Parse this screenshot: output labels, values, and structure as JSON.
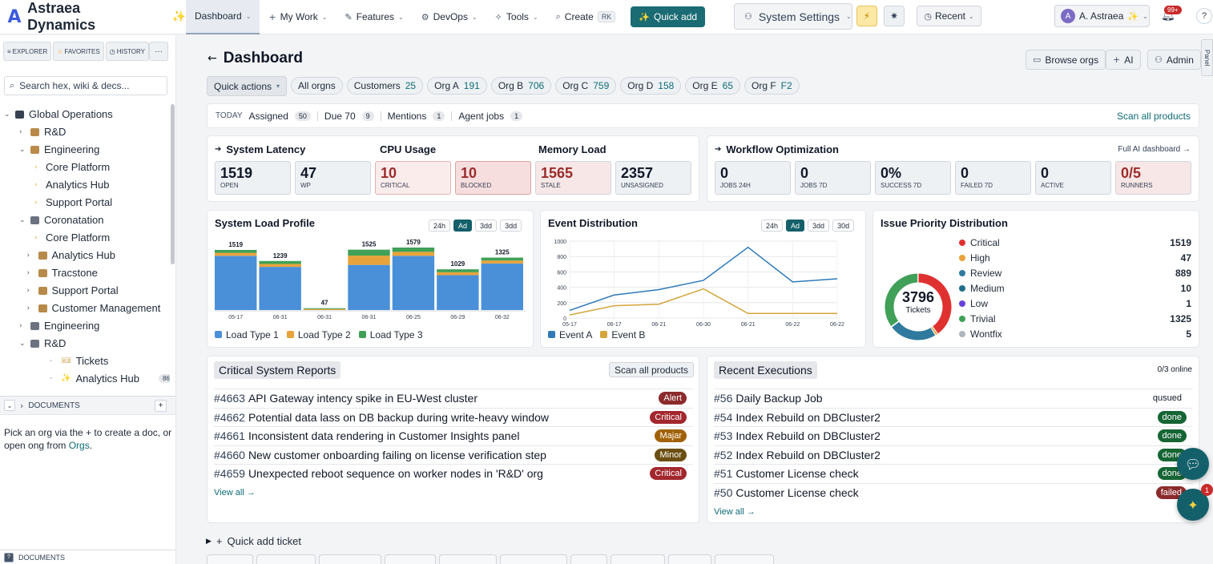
{
  "app": {
    "name": "Astraea Dynamics",
    "logo_glyph": "A"
  },
  "nav": {
    "items": [
      {
        "label": "Dashboard",
        "icon": ""
      },
      {
        "label": "My Work",
        "icon": "+"
      },
      {
        "label": "Features",
        "icon": "✎"
      },
      {
        "label": "DevOps",
        "icon": "⚙"
      },
      {
        "label": "Tools",
        "icon": "✧"
      }
    ],
    "create_label": "Create",
    "create_kbd": "RK",
    "quick_add_label": "Quick add",
    "system_settings": "System Settings",
    "recent": "Recent",
    "user_initial": "A",
    "user_name": "A. Astraea",
    "notif_badge": "99+",
    "help": "?"
  },
  "sidebar": {
    "tabs": [
      "EXPLORER",
      "FAVORITES",
      "HISTORY"
    ],
    "more": "···",
    "search_placeholder": "Search hex, wiki & decs...",
    "tree": [
      {
        "label": "Global Operations",
        "indent": 0,
        "tw": "⌄",
        "icon": "net"
      },
      {
        "label": "R&D",
        "indent": 1,
        "tw": "›",
        "icon": "box"
      },
      {
        "label": "Engineering",
        "indent": 1,
        "tw": "⌄",
        "icon": "box"
      },
      {
        "label": "Core Platform",
        "indent": 2,
        "tw": "›",
        "icon": ""
      },
      {
        "label": "Analytics Hub",
        "indent": 2,
        "tw": "›",
        "icon": ""
      },
      {
        "label": "Support Portal",
        "indent": 2,
        "tw": "›",
        "icon": ""
      },
      {
        "label": "Coronatation",
        "indent": 1,
        "tw": "⌄",
        "icon": "folder"
      },
      {
        "label": "Core Platform",
        "indent": 2,
        "tw": "›",
        "icon": ""
      },
      {
        "label": "Analytics Hub",
        "indent": 1.5,
        "tw": "›",
        "icon": "box"
      },
      {
        "label": "Tracstone",
        "indent": 1.5,
        "tw": "›",
        "icon": "box"
      },
      {
        "label": "Support Portal",
        "indent": 1.5,
        "tw": "›",
        "icon": "box"
      },
      {
        "label": "Customer Management",
        "indent": 1.5,
        "tw": "›",
        "icon": "box"
      },
      {
        "label": "Engineering",
        "indent": 1,
        "tw": "›",
        "icon": "folder"
      },
      {
        "label": "R&D",
        "indent": 1,
        "tw": "⌄",
        "icon": "folder"
      },
      {
        "label": "Tickets",
        "indent": 3,
        "tw": "·",
        "icon": "ticket"
      },
      {
        "label": "Analytics Hub",
        "indent": 3,
        "tw": "·",
        "icon": "spark",
        "count": "86"
      }
    ],
    "documents_label": "DOCUMENTS",
    "documents_add": "+",
    "docs_text_before": "Pick an org via the + to create a doc, or open ong from ",
    "docs_link": "Orgs",
    "docs_text_after": ".",
    "documents_label2": "DOCUMENTS"
  },
  "page": {
    "title": "Dashboard",
    "browse_orgs": "Browse orgs",
    "ai": "AI",
    "admin": "Admin",
    "panel_tab": "Panel",
    "quick_actions": "Quick actions",
    "chips": [
      {
        "label": "All orgns",
        "num": ""
      },
      {
        "label": "Customers",
        "num": "25"
      },
      {
        "label": "Org A",
        "num": "191"
      },
      {
        "label": "Org B",
        "num": "706"
      },
      {
        "label": "Org C",
        "num": "759"
      },
      {
        "label": "Org D",
        "num": "158"
      },
      {
        "label": "Org E",
        "num": "65"
      },
      {
        "label": "Org F",
        "num": "F2"
      }
    ]
  },
  "today": {
    "label": "TODAY",
    "items": [
      {
        "label": "Assigned",
        "count": "50"
      },
      {
        "label": "Due 70",
        "count": "9"
      },
      {
        "label": "Mentions",
        "count": "1"
      },
      {
        "label": "Agent jobs",
        "count": "1"
      }
    ],
    "scan": "Scan all products"
  },
  "metrics": {
    "titles": [
      "System Latency",
      "CPU Usage",
      "Memory Load"
    ],
    "stats": [
      {
        "v": "1519",
        "l": "OPEN",
        "s": ""
      },
      {
        "v": "47",
        "l": "WP",
        "s": ""
      },
      {
        "v": "10",
        "l": "CRITICAL",
        "s": "red"
      },
      {
        "v": "10",
        "l": "BLOCKED",
        "s": "red2"
      },
      {
        "v": "1565",
        "l": "STALE",
        "s": "pink"
      },
      {
        "v": "2357",
        "l": "UNSASIGNED",
        "s": ""
      }
    ]
  },
  "workflow": {
    "title": "Workflow Optimization",
    "link": "Full AI dashboard →",
    "stats": [
      {
        "v": "0",
        "l": "JOBS 24H",
        "s": ""
      },
      {
        "v": "0",
        "l": "JOBS 7D",
        "s": ""
      },
      {
        "v": "0%",
        "l": "SUCCESS 7D",
        "s": ""
      },
      {
        "v": "0",
        "l": "FAILED 7D",
        "s": ""
      },
      {
        "v": "0",
        "l": "ACTIVE",
        "s": ""
      },
      {
        "v": "0/5",
        "l": "RUNNERS",
        "s": "pink"
      }
    ]
  },
  "load_chart": {
    "title": "System Load Profile",
    "ranges": [
      "24h",
      "Ad",
      "3dd",
      "3dd"
    ],
    "active": 1
  },
  "event_chart": {
    "title": "Event Distribution",
    "ranges": [
      "24h",
      "Ad",
      "3dd",
      "30d"
    ],
    "active": 1
  },
  "priority": {
    "title": "Issue Priority Distribution",
    "total": "3796",
    "total_label": "Tickets",
    "rows": [
      {
        "label": "Critical",
        "value": "1519",
        "color": "#e03131"
      },
      {
        "label": "High",
        "value": "47",
        "color": "#e8a33a"
      },
      {
        "label": "Review",
        "value": "889",
        "color": "#2f7a9e"
      },
      {
        "label": "Medium",
        "value": "10",
        "color": "#1f6f8b"
      },
      {
        "label": "Low",
        "value": "1",
        "color": "#6741d9"
      },
      {
        "label": "Trivial",
        "value": "1325",
        "color": "#40a057"
      },
      {
        "label": "Wontfix",
        "value": "5",
        "color": "#adb5bd"
      }
    ]
  },
  "chart_data": [
    {
      "type": "bar",
      "title": "System Load Profile",
      "categories": [
        "05-17",
        "06-31",
        "06-31",
        "06-31",
        "06-25",
        "06-29",
        "06-32"
      ],
      "totals": [
        1519,
        1239,
        47,
        1525,
        1579,
        1029,
        1325
      ],
      "series": [
        {
          "name": "Load Type 1",
          "color": "#4a90d9",
          "values": [
            1370,
            1090,
            0,
            1140,
            1370,
            880,
            1175
          ]
        },
        {
          "name": "Load Type 2",
          "color": "#e8a33a",
          "values": [
            75,
            75,
            25,
            235,
            100,
            75,
            75
          ]
        },
        {
          "name": "Load Type 3",
          "color": "#40a057",
          "values": [
            74,
            74,
            22,
            150,
            109,
            74,
            75
          ]
        }
      ],
      "ylim": [
        0,
        1700
      ]
    },
    {
      "type": "line",
      "title": "Event Distribution",
      "categories": [
        "05-17",
        "06-17",
        "06-21",
        "06-30",
        "06-21",
        "06-22",
        "06-22"
      ],
      "yticks": [
        0,
        200,
        400,
        600,
        800,
        1000
      ],
      "ylim": [
        0,
        1000
      ],
      "series": [
        {
          "name": "Event A",
          "color": "#2f7ab8",
          "values": [
            100,
            300,
            370,
            490,
            920,
            470,
            510
          ]
        },
        {
          "name": "Event B",
          "color": "#d4a53a",
          "values": [
            40,
            160,
            180,
            380,
            60,
            60,
            60
          ]
        }
      ]
    },
    {
      "type": "pie",
      "title": "Issue Priority Distribution",
      "labels": [
        "Critical",
        "High",
        "Review",
        "Medium",
        "Low",
        "Trivial",
        "Wontfix"
      ],
      "values": [
        1519,
        47,
        889,
        10,
        1,
        1325,
        5
      ]
    }
  ],
  "reports": {
    "title": "Critical System Reports",
    "scan": "Scan all products",
    "rows": [
      {
        "id": "#4663",
        "text": "API Gateway intency spike in EU-West cluster",
        "tag": "Alert",
        "cls": "alert"
      },
      {
        "id": "#4662",
        "text": "Potential data lass on DB backup during write-heavy window",
        "tag": "Critical",
        "cls": "crit"
      },
      {
        "id": "#4661",
        "text": "Inconsistent data rendering in Customer Insights panel",
        "tag": "Majar",
        "cls": "majar"
      },
      {
        "id": "#4660",
        "text": "New customer onboarding failing on license verification step",
        "tag": "Minor",
        "cls": "minor"
      },
      {
        "id": "#4659",
        "text": "Unexpected reboot sequence on worker nodes in 'R&D' org",
        "tag": "Critical",
        "cls": "crit"
      }
    ],
    "view_all": "View all →"
  },
  "executions": {
    "title": "Recent Executions",
    "online": "0/3 online",
    "rows": [
      {
        "id": "#56",
        "text": "Daily Backup Job",
        "tag": "qusued",
        "cls": "queued"
      },
      {
        "id": "#54",
        "text": "Index Rebuild on DBCluster2",
        "tag": "done",
        "cls": "done"
      },
      {
        "id": "#53",
        "text": "Index Rebuild on DBCluster2",
        "tag": "done",
        "cls": "done"
      },
      {
        "id": "#52",
        "text": "Index Rebuild on DBCluster2",
        "tag": "done",
        "cls": "done"
      },
      {
        "id": "#51",
        "text": "Customer License check",
        "tag": "done",
        "cls": "done"
      },
      {
        "id": "#50",
        "text": "Customer License check",
        "tag": "failed",
        "cls": "failed"
      }
    ],
    "view_all": "View all →"
  },
  "quick_ticket": "Quick add ticket",
  "fab_badge": "1"
}
